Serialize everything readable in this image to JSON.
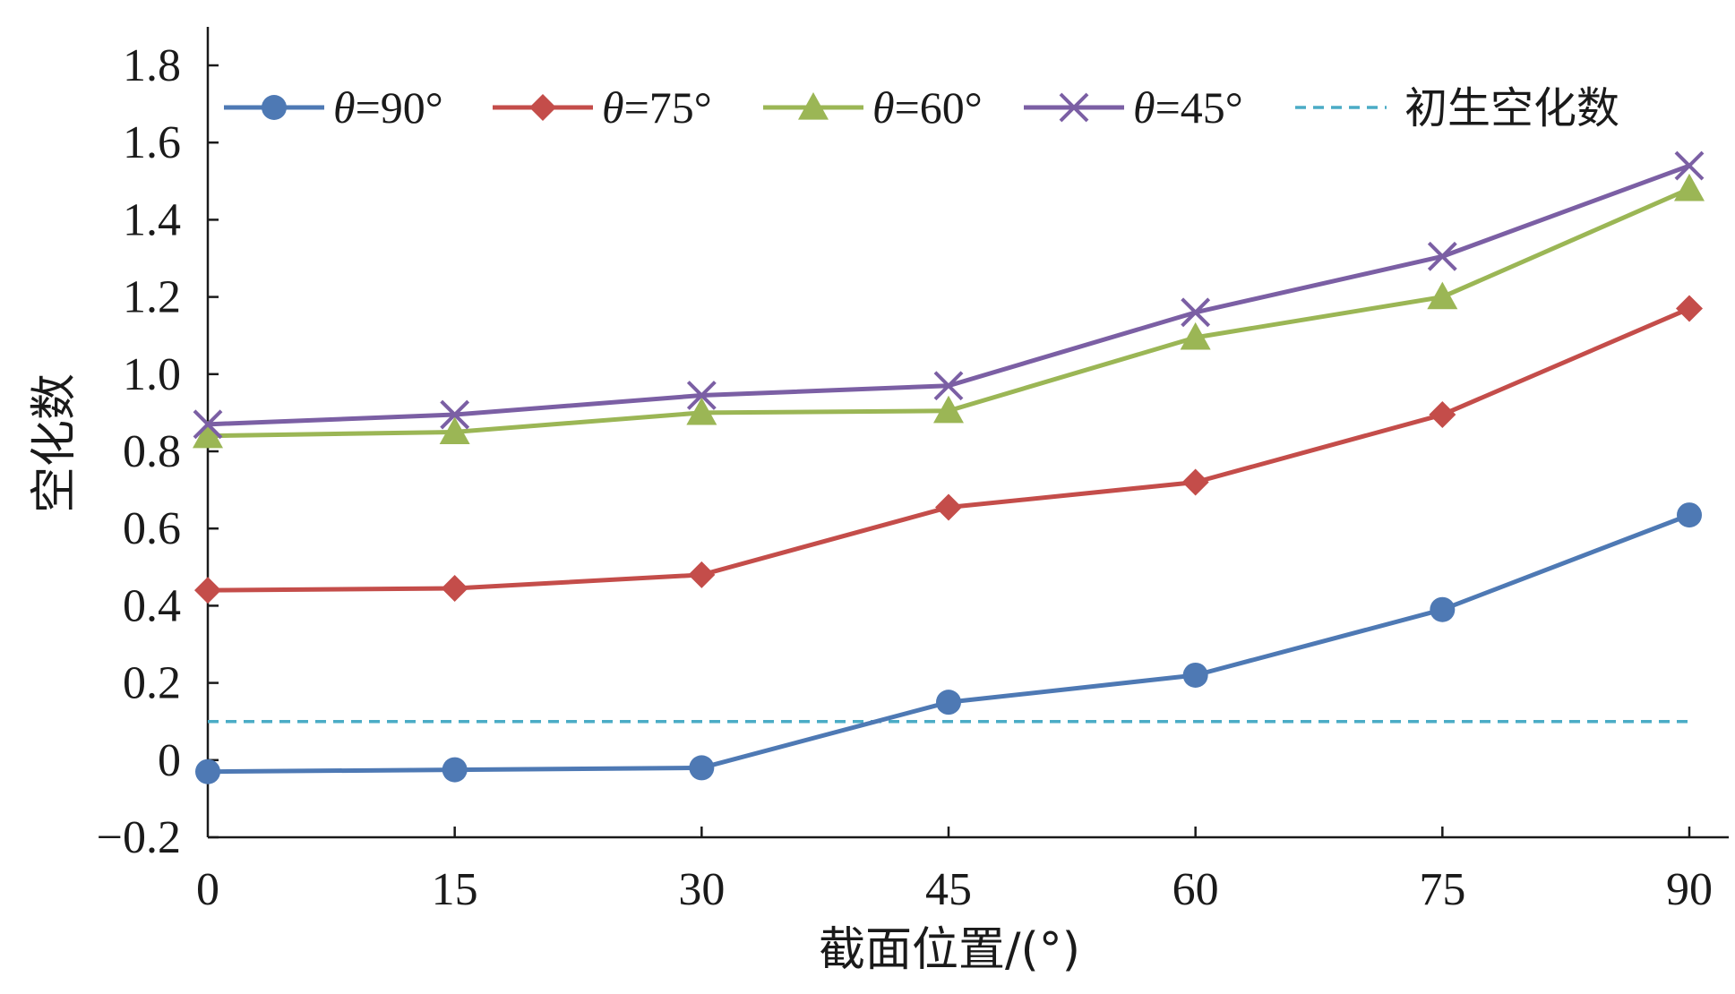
{
  "chart_data": {
    "type": "line",
    "title": "",
    "xlabel": "截面位置/(°)",
    "ylabel": "空化数",
    "x": [
      0,
      15,
      30,
      45,
      60,
      75,
      90
    ],
    "x_ticks": [
      "0",
      "15",
      "30",
      "45",
      "60",
      "75",
      "90"
    ],
    "y_ticks": [
      "1.8",
      "1.6",
      "1.4",
      "1.2",
      "1.0",
      "0.8",
      "0.6",
      "0.4",
      "0.2",
      "0",
      "−0.2"
    ],
    "y_tick_values": [
      1.8,
      1.6,
      1.4,
      1.2,
      1.0,
      0.8,
      0.6,
      0.4,
      0.2,
      0,
      -0.2
    ],
    "xlim": [
      0,
      90
    ],
    "ylim": [
      -0.2,
      1.9
    ],
    "grid": false,
    "legend_position": "top",
    "series": [
      {
        "name_prefix": "θ",
        "name_suffix": "=90°",
        "color": "#4e79b4",
        "marker": "circle",
        "values": [
          -0.03,
          -0.025,
          -0.02,
          0.15,
          0.22,
          0.39,
          0.635
        ]
      },
      {
        "name_prefix": "θ",
        "name_suffix": "=75°",
        "color": "#c44d4a",
        "marker": "diamond",
        "values": [
          0.44,
          0.445,
          0.48,
          0.655,
          0.72,
          0.895,
          1.17
        ]
      },
      {
        "name_prefix": "θ",
        "name_suffix": "=60°",
        "color": "#9bb655",
        "marker": "triangle",
        "values": [
          0.84,
          0.85,
          0.9,
          0.905,
          1.095,
          1.2,
          1.48
        ]
      },
      {
        "name_prefix": "θ",
        "name_suffix": "=45°",
        "color": "#7b5fa4",
        "marker": "cross",
        "values": [
          0.87,
          0.895,
          0.945,
          0.97,
          1.16,
          1.305,
          1.54
        ]
      }
    ],
    "reference_line": {
      "name": "初生空化数",
      "value": 0.1,
      "color": "#4bacc6",
      "style": "dashed"
    }
  }
}
